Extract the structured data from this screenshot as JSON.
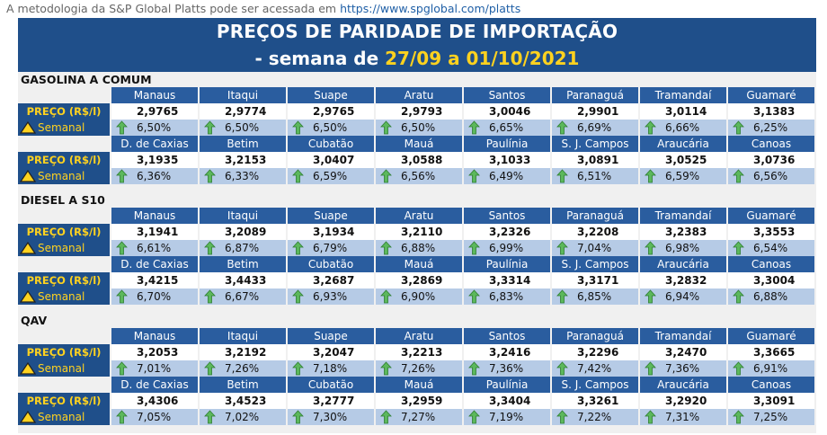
{
  "caption": {
    "text": "A metodologia da S&P Global Platts pode ser acessada em ",
    "link": "https://www.spglobal.com/platts"
  },
  "banner": {
    "title": "PREÇOS DE PARIDADE DE IMPORTAÇÃO",
    "sub_prefix": "- semana de ",
    "sub_dates": "27/09 a 01/10/2021"
  },
  "labels": {
    "price": "PREÇO (R$/l)",
    "weekly": "Semanal"
  },
  "colors": {
    "header_blue": "#1f4f8a",
    "city_blue": "#2a5d9f",
    "pct_bg": "#b6cbe6",
    "accent_yellow": "#ffd21f",
    "arrow_green": "#5cb85c"
  },
  "sections": [
    {
      "title": "GASOLINA A COMUM",
      "blocks": [
        {
          "cities": [
            "Manaus",
            "Itaqui",
            "Suape",
            "Aratu",
            "Santos",
            "Paranaguá",
            "Tramandaí",
            "Guamaré"
          ],
          "prices": [
            "2,9765",
            "2,9774",
            "2,9765",
            "2,9793",
            "3,0046",
            "2,9901",
            "3,0114",
            "3,1383"
          ],
          "pcts": [
            "6,50%",
            "6,50%",
            "6,50%",
            "6,50%",
            "6,65%",
            "6,69%",
            "6,66%",
            "6,25%"
          ]
        },
        {
          "cities": [
            "D. de Caxias",
            "Betim",
            "Cubatão",
            "Mauá",
            "Paulínia",
            "S. J. Campos",
            "Araucária",
            "Canoas"
          ],
          "prices": [
            "3,1935",
            "3,2153",
            "3,0407",
            "3,0588",
            "3,1033",
            "3,0891",
            "3,0525",
            "3,0736"
          ],
          "pcts": [
            "6,36%",
            "6,33%",
            "6,59%",
            "6,56%",
            "6,49%",
            "6,51%",
            "6,59%",
            "6,56%"
          ]
        }
      ]
    },
    {
      "title": "DIESEL A S10",
      "blocks": [
        {
          "cities": [
            "Manaus",
            "Itaqui",
            "Suape",
            "Aratu",
            "Santos",
            "Paranaguá",
            "Tramandaí",
            "Guamaré"
          ],
          "prices": [
            "3,1941",
            "3,2089",
            "3,1934",
            "3,2110",
            "3,2326",
            "3,2208",
            "3,2383",
            "3,3553"
          ],
          "pcts": [
            "6,61%",
            "6,87%",
            "6,79%",
            "6,88%",
            "6,99%",
            "7,04%",
            "6,98%",
            "6,54%"
          ]
        },
        {
          "cities": [
            "D. de Caxias",
            "Betim",
            "Cubatão",
            "Mauá",
            "Paulínia",
            "S. J. Campos",
            "Araucária",
            "Canoas"
          ],
          "prices": [
            "3,4215",
            "3,4433",
            "3,2687",
            "3,2869",
            "3,3314",
            "3,3171",
            "3,2832",
            "3,3004"
          ],
          "pcts": [
            "6,70%",
            "6,67%",
            "6,93%",
            "6,90%",
            "6,83%",
            "6,85%",
            "6,94%",
            "6,88%"
          ]
        }
      ]
    },
    {
      "title": "QAV",
      "blocks": [
        {
          "cities": [
            "Manaus",
            "Itaqui",
            "Suape",
            "Aratu",
            "Santos",
            "Paranaguá",
            "Tramandaí",
            "Guamaré"
          ],
          "prices": [
            "3,2053",
            "3,2192",
            "3,2047",
            "3,2213",
            "3,2416",
            "3,2296",
            "3,2470",
            "3,3665"
          ],
          "pcts": [
            "7,01%",
            "7,26%",
            "7,18%",
            "7,26%",
            "7,36%",
            "7,42%",
            "7,36%",
            "6,91%"
          ]
        },
        {
          "cities": [
            "D. de Caxias",
            "Betim",
            "Cubatão",
            "Mauá",
            "Paulínia",
            "S. J. Campos",
            "Araucária",
            "Canoas"
          ],
          "prices": [
            "3,4306",
            "3,4523",
            "3,2777",
            "3,2959",
            "3,3404",
            "3,3261",
            "3,2920",
            "3,3091"
          ],
          "pcts": [
            "7,05%",
            "7,02%",
            "7,30%",
            "7,27%",
            "7,19%",
            "7,22%",
            "7,31%",
            "7,25%"
          ]
        }
      ]
    }
  ]
}
